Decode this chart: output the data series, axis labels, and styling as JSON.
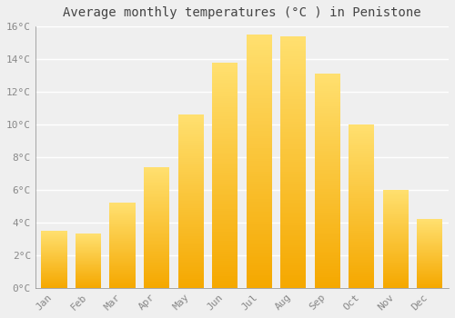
{
  "title": "Average monthly temperatures (°C ) in Penistone",
  "months": [
    "Jan",
    "Feb",
    "Mar",
    "Apr",
    "May",
    "Jun",
    "Jul",
    "Aug",
    "Sep",
    "Oct",
    "Nov",
    "Dec"
  ],
  "values": [
    3.5,
    3.3,
    5.2,
    7.4,
    10.6,
    13.8,
    15.5,
    15.4,
    13.1,
    10.0,
    6.0,
    4.2
  ],
  "bar_color_bottom": "#F5A800",
  "bar_color_top": "#FFE070",
  "ylim": [
    0,
    16
  ],
  "yticks": [
    0,
    2,
    4,
    6,
    8,
    10,
    12,
    14,
    16
  ],
  "ytick_labels": [
    "0°C",
    "2°C",
    "4°C",
    "6°C",
    "8°C",
    "10°C",
    "12°C",
    "14°C",
    "16°C"
  ],
  "background_color": "#EFEFEF",
  "grid_color": "#FFFFFF",
  "title_fontsize": 10,
  "tick_fontsize": 8,
  "bar_width": 0.75
}
